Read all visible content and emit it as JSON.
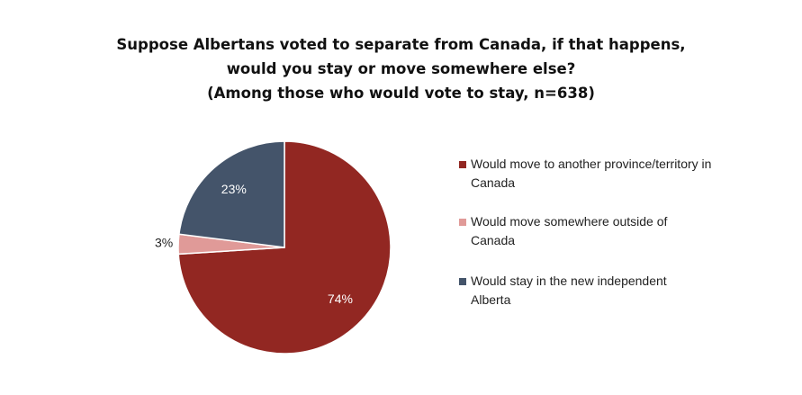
{
  "chart_data": {
    "type": "pie",
    "title": [
      "Suppose Albertans voted to separate from Canada, if that happens,",
      "would you stay or move somewhere else?"
    ],
    "subtitle": "(Among those who would vote to stay, n=638)",
    "categories": [
      "Would move to another province/territory in Canada",
      "Would move somewhere outside of Canada",
      "Would stay in the new independent Alberta"
    ],
    "values": [
      74,
      3,
      23
    ],
    "value_labels": [
      "74%",
      "3%",
      "23%"
    ],
    "colors": [
      "#922722",
      "#e09a98",
      "#44546a"
    ],
    "legend": "right"
  }
}
